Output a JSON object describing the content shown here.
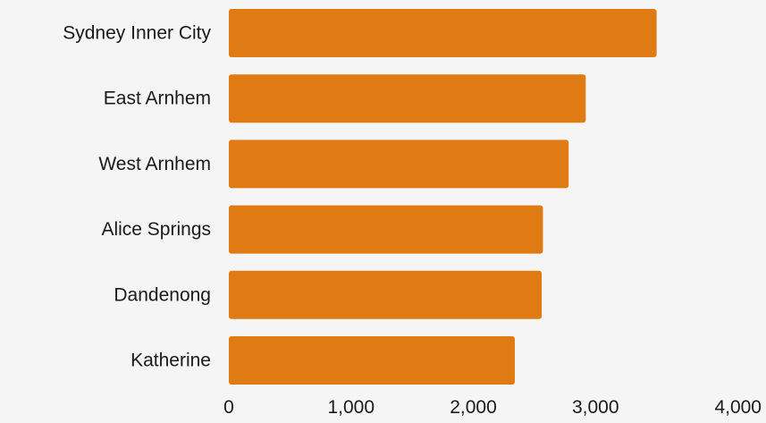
{
  "chart_data": {
    "type": "bar",
    "orientation": "horizontal",
    "categories": [
      "Sydney Inner City",
      "East Arnhem",
      "West Arnhem",
      "Alice Springs",
      "Dandenong",
      "Katherine"
    ],
    "values": [
      3500,
      2920,
      2780,
      2570,
      2560,
      2340
    ],
    "title": "",
    "xlabel": "",
    "ylabel": "",
    "xlim": [
      0,
      4000
    ],
    "xticks": [
      0,
      1000,
      2000,
      3000,
      4000
    ],
    "xtick_labels": [
      "0",
      "1,000",
      "2,000",
      "3,000",
      "4,000"
    ],
    "grid": false,
    "legend": "none",
    "bar_color": "#e07b14"
  }
}
